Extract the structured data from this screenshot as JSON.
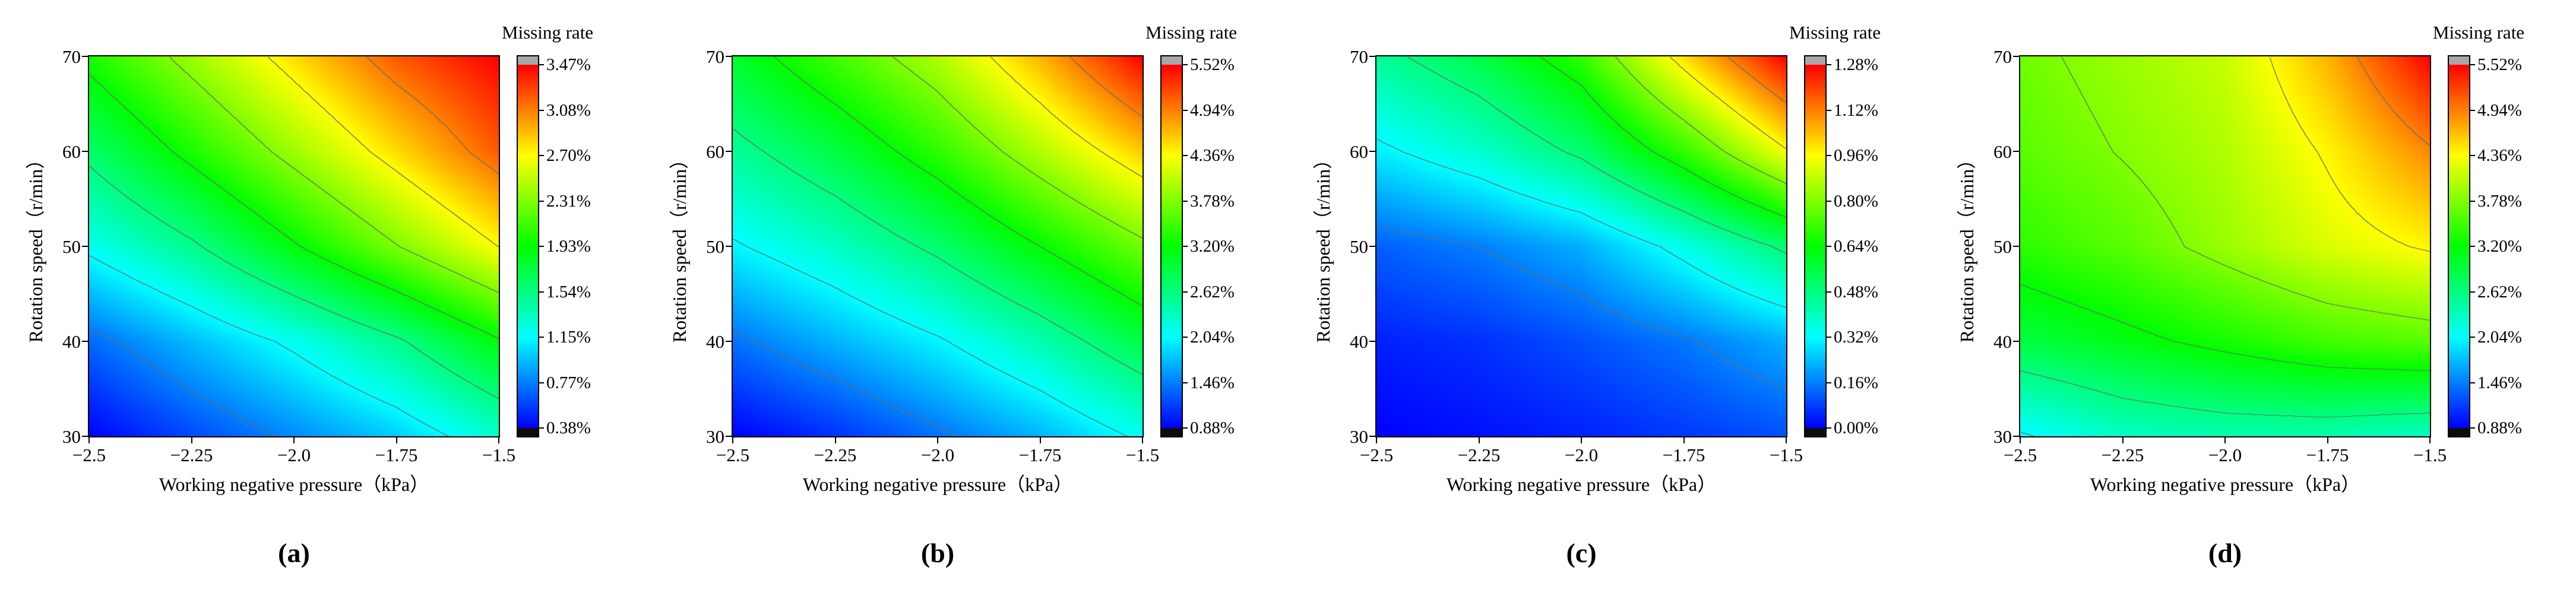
{
  "figure_title": "",
  "chart_data": [
    {
      "type": "heatmap",
      "panel": "a",
      "panel_label": "(a)",
      "colorbar_title": "Missing rate",
      "xlabel": "Working negative pressure（kPa）",
      "ylabel": "Rotation speed（r/min）",
      "x": [
        -2.5,
        -2.25,
        -2.0,
        -1.75,
        -1.5
      ],
      "y": [
        30,
        40,
        50,
        60,
        70
      ],
      "x_tick_labels": [
        "−2.5",
        "−2.25",
        "−2.0",
        "−1.75",
        "−1.5"
      ],
      "y_tick_labels": [
        "30",
        "40",
        "50",
        "60",
        "70"
      ],
      "zmin": 0.38,
      "zmax": 3.47,
      "colorbar_tick_labels": [
        "3.47%",
        "3.08%",
        "2.70%",
        "2.31%",
        "1.93%",
        "1.54%",
        "1.15%",
        "0.77%",
        "0.38%"
      ],
      "grid": [
        [
          0.38,
          0.6,
          0.8,
          1.0,
          1.3
        ],
        [
          0.7,
          0.95,
          1.2,
          1.5,
          1.9
        ],
        [
          1.2,
          1.5,
          1.9,
          2.3,
          2.7
        ],
        [
          1.6,
          2.0,
          2.4,
          2.8,
          3.2
        ],
        [
          2.0,
          2.4,
          2.8,
          3.2,
          3.47
        ]
      ]
    },
    {
      "type": "heatmap",
      "panel": "b",
      "panel_label": "(b)",
      "colorbar_title": "Missing rate",
      "xlabel": "Working negative pressure（kPa）",
      "ylabel": "Rotation speed（r/min）",
      "x": [
        -2.5,
        -2.25,
        -2.0,
        -1.75,
        -1.5
      ],
      "y": [
        30,
        40,
        50,
        60,
        70
      ],
      "x_tick_labels": [
        "−2.5",
        "−2.25",
        "−2.0",
        "−1.75",
        "−1.5"
      ],
      "y_tick_labels": [
        "30",
        "40",
        "50",
        "60",
        "70"
      ],
      "zmin": 0.88,
      "zmax": 5.52,
      "colorbar_tick_labels": [
        "5.52%",
        "4.94%",
        "4.36%",
        "3.78%",
        "3.20%",
        "2.62%",
        "2.04%",
        "1.46%",
        "0.88%"
      ],
      "grid": [
        [
          0.88,
          1.1,
          1.4,
          1.7,
          2.1
        ],
        [
          1.4,
          1.7,
          2.0,
          2.4,
          2.9
        ],
        [
          2.0,
          2.3,
          2.7,
          3.2,
          3.7
        ],
        [
          2.5,
          2.9,
          3.4,
          4.0,
          4.6
        ],
        [
          3.0,
          3.5,
          4.0,
          4.7,
          5.52
        ]
      ]
    },
    {
      "type": "heatmap",
      "panel": "c",
      "panel_label": "(c)",
      "colorbar_title": "Missing rate",
      "xlabel": "Working negative pressure（kPa）",
      "ylabel": "Rotation speed（r/min）",
      "x": [
        -2.5,
        -2.25,
        -2.0,
        -1.75,
        -1.5
      ],
      "y": [
        30,
        40,
        50,
        60,
        70
      ],
      "x_tick_labels": [
        "−2.5",
        "−2.25",
        "−2.0",
        "−1.75",
        "−1.5"
      ],
      "y_tick_labels": [
        "30",
        "40",
        "50",
        "60",
        "70"
      ],
      "zmin": 0.0,
      "zmax": 1.28,
      "colorbar_tick_labels": [
        "1.28%",
        "1.12%",
        "0.96%",
        "0.80%",
        "0.64%",
        "0.48%",
        "0.32%",
        "0.16%",
        "0.00%"
      ],
      "grid": [
        [
          0.0,
          0.02,
          0.04,
          0.07,
          0.1
        ],
        [
          0.04,
          0.06,
          0.1,
          0.15,
          0.22
        ],
        [
          0.12,
          0.16,
          0.22,
          0.35,
          0.5
        ],
        [
          0.3,
          0.38,
          0.5,
          0.7,
          0.95
        ],
        [
          0.45,
          0.55,
          0.7,
          1.0,
          1.28
        ]
      ]
    },
    {
      "type": "heatmap",
      "panel": "d",
      "panel_label": "(d)",
      "colorbar_title": "Missing rate",
      "xlabel": "Working negative pressure（kPa）",
      "ylabel": "Rotation speed（r/min）",
      "x": [
        -2.5,
        -2.25,
        -2.0,
        -1.75,
        -1.5
      ],
      "y": [
        30,
        40,
        50,
        60,
        70
      ],
      "x_tick_labels": [
        "−2.5",
        "−2.25",
        "−2.0",
        "−1.75",
        "−1.5"
      ],
      "y_tick_labels": [
        "30",
        "40",
        "50",
        "60",
        "70"
      ],
      "zmin": 0.88,
      "zmax": 5.52,
      "colorbar_tick_labels": [
        "5.52%",
        "4.94%",
        "4.36%",
        "3.78%",
        "3.20%",
        "2.62%",
        "2.04%",
        "1.46%",
        "0.88%"
      ],
      "grid": [
        [
          2.0,
          2.3,
          2.4,
          2.4,
          2.3
        ],
        [
          2.9,
          3.1,
          3.3,
          3.5,
          3.6
        ],
        [
          3.4,
          3.6,
          3.9,
          4.2,
          4.4
        ],
        [
          3.6,
          3.8,
          4.0,
          4.4,
          4.9
        ],
        [
          3.7,
          3.9,
          4.1,
          4.7,
          5.52
        ]
      ]
    }
  ]
}
